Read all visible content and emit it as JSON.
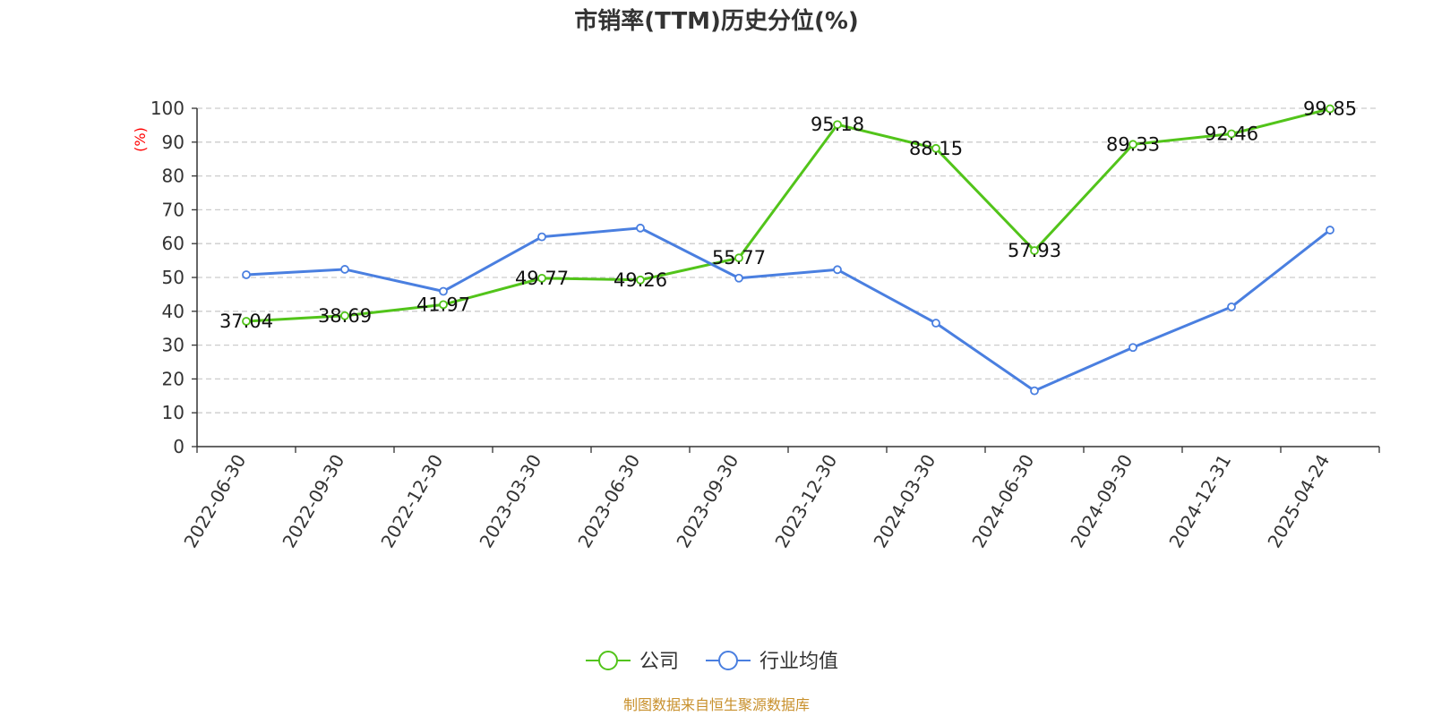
{
  "chart_data": {
    "type": "line",
    "title": "市销率(TTM)历史分位(%)",
    "ylabel": "(%)",
    "ylim": [
      0,
      100
    ],
    "yticks": [
      0,
      10,
      20,
      30,
      40,
      50,
      60,
      70,
      80,
      90,
      100
    ],
    "categories": [
      "2022-06-30",
      "2022-09-30",
      "2022-12-30",
      "2023-03-30",
      "2023-06-30",
      "2023-09-30",
      "2023-12-30",
      "2024-03-30",
      "2024-06-30",
      "2024-09-30",
      "2024-12-31",
      "2025-04-24"
    ],
    "grid": "horizontal dashed",
    "legend_position": "bottom-center",
    "series": [
      {
        "name": "公司",
        "color": "#52c41a",
        "values": [
          37.04,
          38.69,
          41.97,
          49.77,
          49.26,
          55.77,
          95.18,
          88.15,
          57.93,
          89.33,
          92.46,
          99.85
        ],
        "labels": [
          "37.04",
          "38.69",
          "41.97",
          "49.77",
          "49.26",
          "55.77",
          "95.18",
          "88.15",
          "57.93",
          "89.33",
          "92.46",
          "99.85"
        ]
      },
      {
        "name": "行业均值",
        "color": "#4a7fe0",
        "values": [
          50.8,
          52.4,
          45.9,
          62.0,
          64.6,
          49.8,
          52.3,
          36.5,
          16.5,
          29.3,
          41.3,
          64.0
        ]
      }
    ]
  },
  "colors": {
    "ylabel": "#ff0000",
    "source": "#c8902c",
    "grid": "#cccccc",
    "axis": "#333333"
  },
  "source_text": "制图数据来自恒生聚源数据库"
}
